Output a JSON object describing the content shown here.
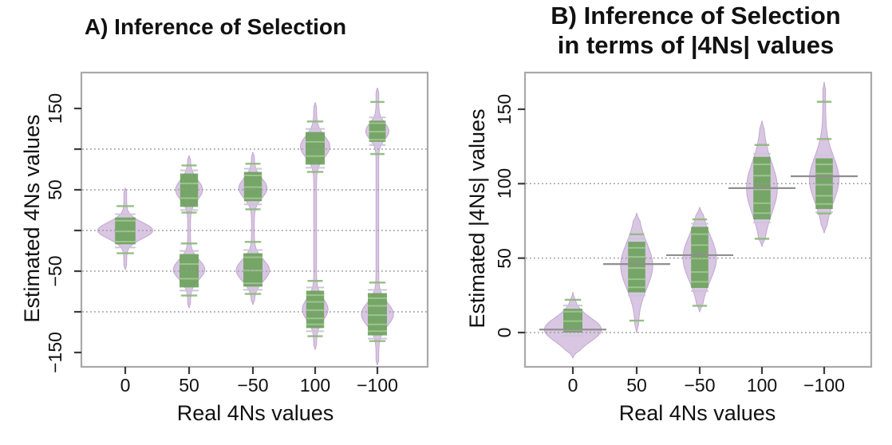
{
  "colors": {
    "violin_fill": "#d7c4e1",
    "violin_edge": "#c2a7d1",
    "bean_green": "#6da25c",
    "bean_green_light": "#a3c795",
    "band_gray": "#cdc4d9",
    "mean_line": "#8f8f8f",
    "gridline": "#9a9a9a",
    "frame": "#a9a9a9",
    "tick": "#3b3b3b"
  },
  "chart_data": [
    {
      "type": "violin",
      "panel": "A",
      "title": "A) Inference of Selection",
      "title_lines": [
        "A) Inference of Selection"
      ],
      "xlabel": "Real 4Ns values",
      "ylabel": "Estimated 4Ns values",
      "categories": [
        "0",
        "50",
        "−50",
        "100",
        "−100"
      ],
      "ylim": [
        -170,
        195
      ],
      "grid": "dotted-horizontal",
      "legend": "none",
      "gridlines": [
        100,
        50,
        0,
        -50,
        -100
      ],
      "yticks": [
        {
          "v": 150,
          "label": "150"
        },
        {
          "v": 100,
          "label": ""
        },
        {
          "v": 50,
          "label": "50"
        },
        {
          "v": 0,
          "label": ""
        },
        {
          "v": -50,
          "label": "−50"
        },
        {
          "v": -100,
          "label": ""
        },
        {
          "v": -150,
          "label": "−150"
        }
      ],
      "groups": [
        {
          "category": "0",
          "stem": [
            -48,
            52
          ],
          "mean": null,
          "blobs": [
            {
              "center": 0,
              "sd": 10,
              "width": 0.82,
              "box": [
                -17,
                16
              ],
              "box_width": 0.32,
              "ticks": [
                30,
                -28
              ]
            }
          ]
        },
        {
          "category": "50",
          "stem": [
            -95,
            92
          ],
          "mean": null,
          "blobs": [
            {
              "center": 50,
              "sd": 12,
              "width": 0.38,
              "box": [
                29,
                70
              ],
              "box_width": 0.28,
              "ticks": [
                80,
                22
              ]
            },
            {
              "center": -48,
              "sd": 12,
              "width": 0.45,
              "box": [
                -70,
                -29
              ],
              "box_width": 0.3,
              "ticks": [
                -16,
                -80
              ]
            }
          ]
        },
        {
          "category": "−50",
          "stem": [
            -91,
            96
          ],
          "mean": null,
          "blobs": [
            {
              "center": 52,
              "sd": 12,
              "width": 0.4,
              "box": [
                36,
                72
              ],
              "box_width": 0.28,
              "ticks": [
                82,
                26
              ]
            },
            {
              "center": -49,
              "sd": 13,
              "width": 0.48,
              "box": [
                -69,
                -28
              ],
              "box_width": 0.3,
              "ticks": [
                -14,
                -78
              ]
            }
          ]
        },
        {
          "category": "100",
          "stem": [
            -146,
            157
          ],
          "mean": null,
          "blobs": [
            {
              "center": 103,
              "sd": 13,
              "width": 0.42,
              "box": [
                81,
                121
              ],
              "box_width": 0.3,
              "ticks": [
                134,
                72
              ]
            },
            {
              "center": -97,
              "sd": 13,
              "width": 0.36,
              "box": [
                -120,
                -74
              ],
              "box_width": 0.28,
              "ticks": [
                -62,
                -130
              ]
            }
          ]
        },
        {
          "category": "−100",
          "stem": [
            -165,
            175
          ],
          "mean": null,
          "blobs": [
            {
              "center": 122,
              "sd": 10,
              "width": 0.32,
              "box": [
                109,
                135
              ],
              "box_width": 0.26,
              "ticks": [
                158,
                94
              ]
            },
            {
              "center": -103,
              "sd": 14,
              "width": 0.46,
              "box": [
                -129,
                -77
              ],
              "box_width": 0.3,
              "ticks": [
                -64,
                -136
              ]
            }
          ]
        }
      ]
    },
    {
      "type": "violin",
      "panel": "B",
      "title": "B) Inference of Selection in terms of |4Ns| values",
      "title_lines": [
        "B) Inference of Selection",
        "in terms of |4Ns| values"
      ],
      "xlabel": "Real 4Ns values",
      "ylabel": "Estimated |4Ns| values",
      "categories": [
        "0",
        "50",
        "−50",
        "100",
        "−100"
      ],
      "ylim": [
        -23,
        175
      ],
      "grid": "dotted-horizontal",
      "legend": "none",
      "gridlines": [
        100,
        50,
        0
      ],
      "yticks": [
        {
          "v": 0,
          "label": "0"
        },
        {
          "v": 50,
          "label": "50"
        },
        {
          "v": 100,
          "label": "100"
        },
        {
          "v": 150,
          "label": "150"
        }
      ],
      "groups": [
        {
          "category": "0",
          "stem": [
            -17,
            27
          ],
          "mean": 2,
          "blobs": [
            {
              "center": 2,
              "sd": 8,
              "width": 0.85,
              "box": [
                0,
                16
              ],
              "box_width": 0.3,
              "ticks": [
                22
              ]
            }
          ]
        },
        {
          "category": "50",
          "stem": [
            0,
            80
          ],
          "mean": 46,
          "blobs": [
            {
              "center": 45,
              "sd": 15,
              "width": 0.46,
              "box": [
                27,
                61
              ],
              "box_width": 0.27,
              "ticks": [
                66,
                8
              ]
            }
          ]
        },
        {
          "category": "−50",
          "stem": [
            14,
            84
          ],
          "mean": 52,
          "blobs": [
            {
              "center": 50,
              "sd": 15,
              "width": 0.48,
              "box": [
                30,
                71
              ],
              "box_width": 0.27,
              "ticks": [
                76,
                18
              ]
            }
          ]
        },
        {
          "category": "100",
          "stem": [
            58,
            142
          ],
          "mean": 97,
          "blobs": [
            {
              "center": 97,
              "sd": 17,
              "width": 0.44,
              "box": [
                76,
                118
              ],
              "box_width": 0.27,
              "ticks": [
                126,
                63
              ]
            }
          ]
        },
        {
          "category": "−100",
          "stem": [
            67,
            168
          ],
          "mean": 105,
          "blobs": [
            {
              "center": 103,
              "sd": 15,
              "width": 0.42,
              "box": [
                83,
                117
              ],
              "box_width": 0.27,
              "ticks": [
                155,
                130,
                80
              ]
            }
          ]
        }
      ]
    }
  ]
}
